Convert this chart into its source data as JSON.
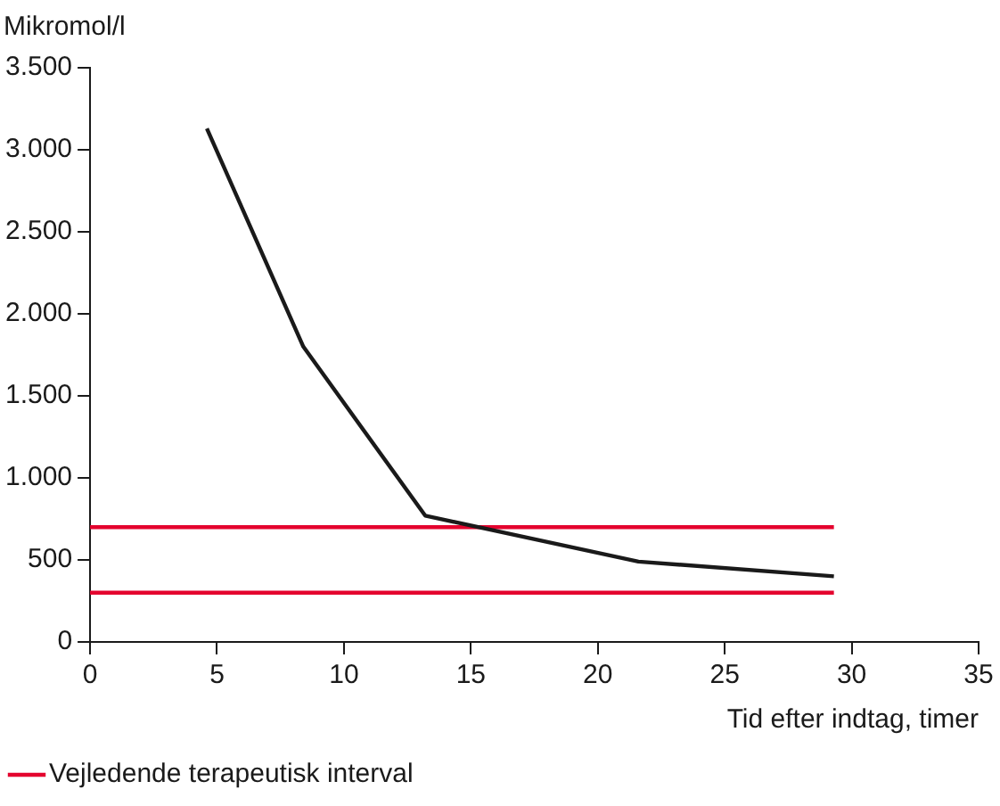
{
  "chart_data": {
    "type": "line",
    "xlabel": "Tid efter indtag, timer",
    "ylabel": "Mikromol/l",
    "xlim": [
      0,
      35
    ],
    "xticks": [
      0,
      5,
      10,
      15,
      20,
      25,
      30,
      35
    ],
    "ylim": [
      0,
      3500
    ],
    "yticks": [
      0,
      {
        "value": 500,
        "label": "500"
      },
      {
        "value": 1000,
        "label": "1.000"
      },
      {
        "value": 1500,
        "label": "1.500"
      },
      {
        "value": 2000,
        "label": "2.000"
      },
      {
        "value": 2500,
        "label": "2.500"
      },
      {
        "value": 3000,
        "label": "3.000"
      },
      {
        "value": 3500,
        "label": "3.500"
      }
    ],
    "legend": "bottom left",
    "series": [
      {
        "color": "#1a1a1a",
        "x": [
          4.6,
          8.4,
          13.2,
          21.6,
          29.3
        ],
        "values": [
          3130,
          1800,
          770,
          490,
          400
        ]
      },
      {
        "name": "Vejledende terapeutisk interval",
        "color": "#e4032e",
        "x": [
          0,
          29.3
        ],
        "values": [
          700,
          700
        ]
      },
      {
        "color": "#e4032e",
        "x": [
          0,
          29.3
        ],
        "values": [
          300,
          300
        ]
      }
    ]
  }
}
